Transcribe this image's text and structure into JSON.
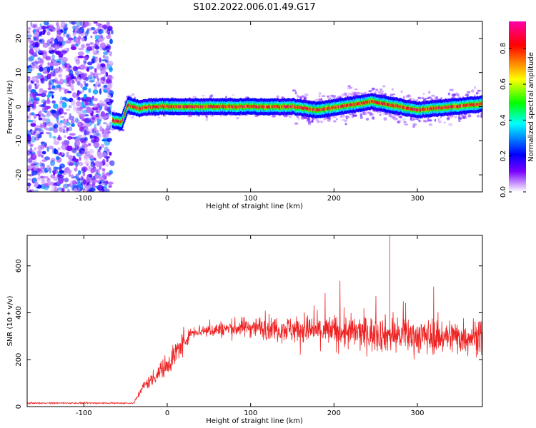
{
  "title": "S102.2022.006.01.49.G17",
  "chart_data": [
    {
      "type": "heatmap",
      "xlabel": "Height of straight line (km)",
      "ylabel": "Frequency (Hz)",
      "xlim": [
        -168,
        378
      ],
      "ylim": [
        -25,
        25
      ],
      "xticks": [
        -100,
        0,
        100,
        200,
        300
      ],
      "yticks": [
        -20,
        -10,
        0,
        10,
        20
      ],
      "noise_region_x": [
        -168,
        -66
      ],
      "signal_start_x": -66,
      "ridge_frequency": [
        {
          "x": -66,
          "y": -4
        },
        {
          "x": -55,
          "y": -4.5
        },
        {
          "x": -48,
          "y": 0.5
        },
        {
          "x": -35,
          "y": -0.5
        },
        {
          "x": -20,
          "y": 0
        },
        {
          "x": 50,
          "y": 0
        },
        {
          "x": 150,
          "y": 0
        },
        {
          "x": 180,
          "y": -1
        },
        {
          "x": 245,
          "y": 1.5
        },
        {
          "x": 300,
          "y": -1
        },
        {
          "x": 378,
          "y": 0.8
        }
      ],
      "colorbar": {
        "label": "Normalized spectral amplitude",
        "range": [
          0,
          0.95
        ],
        "ticks": [
          "0.0",
          "0.2",
          "0.4",
          "0.6",
          "0.8"
        ],
        "colors": [
          "#ffffff",
          "#7a00ff",
          "#0000ff",
          "#00ffff",
          "#00ff00",
          "#ffff00",
          "#ff8000",
          "#ff0000",
          "#ff00aa"
        ]
      },
      "grid": false
    },
    {
      "type": "line",
      "xlabel": "Height of straight line (km)",
      "ylabel": "SNR (10 * v/v)",
      "xlim": [
        -168,
        378
      ],
      "ylim": [
        0,
        730
      ],
      "xticks": [
        -100,
        0,
        100,
        200,
        300
      ],
      "yticks": [
        0,
        200,
        400,
        600
      ],
      "series_color": "#ee2222",
      "envelope": [
        {
          "x": -168,
          "y": 15
        },
        {
          "x": -40,
          "y": 15
        },
        {
          "x": -30,
          "y": 80
        },
        {
          "x": 0,
          "y": 180
        },
        {
          "x": 30,
          "y": 320
        },
        {
          "x": 100,
          "y": 340
        },
        {
          "x": 200,
          "y": 320
        },
        {
          "x": 300,
          "y": 300
        },
        {
          "x": 378,
          "y": 300
        }
      ],
      "peak": {
        "x": 267,
        "y": 730
      },
      "grid": false
    }
  ]
}
